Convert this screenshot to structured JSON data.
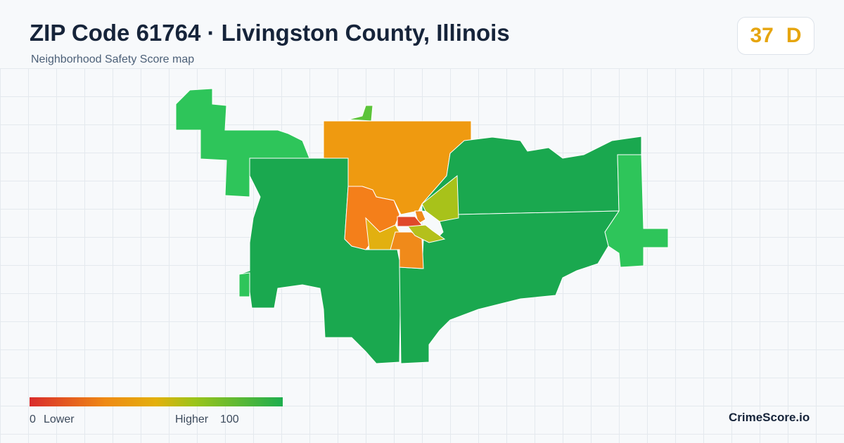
{
  "header": {
    "title": "ZIP Code 61764 · Livingston County, Illinois",
    "subtitle": "Neighborhood Safety Score map"
  },
  "score": {
    "value": "37",
    "grade": "D"
  },
  "legend": {
    "min": "0",
    "min_label": "Lower",
    "max_label": "Higher",
    "max": "100"
  },
  "brand": "CrimeScore.io"
}
